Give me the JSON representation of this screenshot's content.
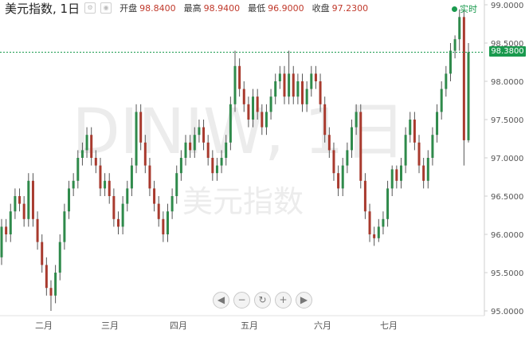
{
  "header": {
    "title": "美元指数, 1日",
    "open_label": "开盘",
    "open_value": "98.8400",
    "high_label": "最高",
    "high_value": "98.9400",
    "low_label": "最低",
    "low_value": "96.9000",
    "close_label": "收盘",
    "close_value": "97.2300",
    "realtime_label": "实时"
  },
  "watermark": {
    "code": "DINIW, 1日",
    "name": "美元指数"
  },
  "current_price": "98.3800",
  "icons": [
    "chart-settings-icon",
    "chart-eye-icon",
    "realtime-dot-icon"
  ],
  "colors": {
    "up": "#2f8a4b",
    "down": "#a83a2e",
    "realtime": "#1a9a4e",
    "price_line": "#1a9a4e"
  },
  "zoom_controls": [
    "scroll-left",
    "zoom-out",
    "reset",
    "zoom-in",
    "scroll-right"
  ],
  "chart_data": {
    "type": "candlestick",
    "ylim": [
      95.0,
      99.0
    ],
    "y_ticks": [
      "99.0000",
      "98.5000",
      "98.0000",
      "97.5000",
      "97.0000",
      "96.5000",
      "96.0000",
      "95.5000",
      "95.0000"
    ],
    "x_labels": [
      "二月",
      "三月",
      "四月",
      "五月",
      "六月",
      "七月"
    ],
    "price_line": 98.38,
    "candles": [
      [
        95.7,
        96.1,
        95.6,
        96.2
      ],
      [
        96.1,
        96.0,
        95.9,
        96.2
      ],
      [
        96.0,
        96.3,
        95.9,
        96.4
      ],
      [
        96.3,
        96.5,
        96.2,
        96.6
      ],
      [
        96.5,
        96.4,
        96.3,
        96.6
      ],
      [
        96.4,
        96.2,
        96.1,
        96.5
      ],
      [
        96.2,
        96.7,
        96.1,
        96.8
      ],
      [
        96.7,
        96.2,
        96.1,
        96.8
      ],
      [
        96.2,
        95.9,
        95.8,
        96.3
      ],
      [
        95.9,
        95.6,
        95.5,
        96.0
      ],
      [
        95.6,
        95.3,
        95.2,
        95.7
      ],
      [
        95.3,
        95.2,
        95.0,
        95.4
      ],
      [
        95.2,
        95.5,
        95.1,
        95.6
      ],
      [
        95.5,
        95.9,
        95.4,
        96.0
      ],
      [
        95.9,
        96.3,
        95.8,
        96.4
      ],
      [
        96.3,
        96.6,
        96.2,
        96.7
      ],
      [
        96.6,
        96.7,
        96.5,
        96.8
      ],
      [
        96.7,
        97.0,
        96.6,
        97.1
      ],
      [
        97.0,
        97.1,
        96.9,
        97.2
      ],
      [
        97.1,
        97.3,
        97.0,
        97.4
      ],
      [
        97.3,
        97.0,
        96.9,
        97.4
      ],
      [
        97.0,
        96.9,
        96.8,
        97.1
      ],
      [
        96.9,
        96.6,
        96.5,
        97.0
      ],
      [
        96.6,
        96.7,
        96.5,
        96.8
      ],
      [
        96.7,
        96.5,
        96.4,
        96.8
      ],
      [
        96.5,
        96.2,
        96.1,
        96.6
      ],
      [
        96.2,
        96.1,
        96.0,
        96.3
      ],
      [
        96.1,
        96.4,
        96.0,
        96.5
      ],
      [
        96.4,
        96.6,
        96.3,
        96.7
      ],
      [
        96.6,
        96.9,
        96.5,
        97.0
      ],
      [
        96.9,
        97.6,
        96.8,
        97.7
      ],
      [
        97.6,
        97.2,
        97.1,
        97.7
      ],
      [
        97.2,
        96.9,
        96.8,
        97.3
      ],
      [
        96.9,
        96.6,
        96.5,
        97.0
      ],
      [
        96.6,
        96.4,
        96.3,
        96.7
      ],
      [
        96.4,
        96.2,
        96.1,
        96.5
      ],
      [
        96.2,
        96.0,
        95.9,
        96.3
      ],
      [
        96.0,
        96.3,
        95.9,
        96.4
      ],
      [
        96.3,
        96.5,
        96.2,
        96.6
      ],
      [
        96.5,
        96.8,
        96.4,
        96.9
      ],
      [
        96.8,
        97.0,
        96.7,
        97.1
      ],
      [
        97.0,
        97.2,
        96.9,
        97.3
      ],
      [
        97.2,
        97.1,
        97.0,
        97.3
      ],
      [
        97.1,
        97.3,
        97.0,
        97.4
      ],
      [
        97.3,
        97.4,
        97.2,
        97.5
      ],
      [
        97.4,
        97.2,
        97.1,
        97.5
      ],
      [
        97.2,
        97.0,
        96.9,
        97.3
      ],
      [
        97.0,
        96.8,
        96.7,
        97.1
      ],
      [
        96.8,
        96.9,
        96.7,
        97.0
      ],
      [
        96.9,
        97.0,
        96.8,
        97.1
      ],
      [
        97.0,
        97.2,
        96.9,
        97.3
      ],
      [
        97.2,
        97.7,
        97.1,
        97.8
      ],
      [
        97.7,
        98.2,
        97.6,
        98.4
      ],
      [
        98.2,
        97.9,
        97.8,
        98.3
      ],
      [
        97.9,
        97.7,
        97.6,
        98.0
      ],
      [
        97.7,
        97.5,
        97.4,
        97.8
      ],
      [
        97.5,
        97.8,
        97.4,
        97.9
      ],
      [
        97.8,
        97.6,
        97.5,
        97.9
      ],
      [
        97.6,
        97.4,
        97.3,
        97.7
      ],
      [
        97.4,
        97.6,
        97.3,
        97.7
      ],
      [
        97.6,
        97.8,
        97.5,
        97.9
      ],
      [
        97.8,
        98.0,
        97.7,
        98.1
      ],
      [
        98.0,
        98.1,
        97.9,
        98.2
      ],
      [
        98.1,
        97.8,
        97.7,
        98.2
      ],
      [
        97.8,
        98.1,
        97.7,
        98.4
      ],
      [
        98.1,
        97.8,
        97.7,
        98.2
      ],
      [
        97.8,
        98.0,
        97.7,
        98.1
      ],
      [
        98.0,
        97.7,
        97.6,
        98.1
      ],
      [
        97.7,
        97.9,
        97.6,
        98.0
      ],
      [
        97.9,
        98.1,
        97.8,
        98.2
      ],
      [
        98.1,
        98.0,
        97.9,
        98.2
      ],
      [
        98.0,
        97.7,
        97.6,
        98.1
      ],
      [
        97.7,
        97.3,
        97.2,
        97.8
      ],
      [
        97.3,
        97.1,
        97.0,
        97.4
      ],
      [
        97.1,
        96.8,
        96.7,
        97.2
      ],
      [
        96.8,
        96.6,
        96.5,
        96.9
      ],
      [
        96.6,
        96.9,
        96.5,
        97.0
      ],
      [
        96.9,
        97.1,
        96.8,
        97.2
      ],
      [
        97.1,
        97.4,
        97.0,
        97.5
      ],
      [
        97.4,
        97.6,
        97.3,
        97.7
      ],
      [
        97.6,
        96.7,
        96.6,
        97.7
      ],
      [
        96.7,
        96.3,
        96.2,
        96.8
      ],
      [
        96.3,
        96.0,
        95.9,
        96.4
      ],
      [
        96.0,
        95.95,
        95.85,
        96.1
      ],
      [
        95.95,
        96.1,
        95.9,
        96.2
      ],
      [
        96.1,
        96.2,
        96.0,
        96.3
      ],
      [
        96.2,
        96.6,
        96.1,
        96.7
      ],
      [
        96.6,
        96.85,
        96.5,
        96.9
      ],
      [
        96.85,
        96.7,
        96.6,
        96.9
      ],
      [
        96.7,
        96.9,
        96.6,
        97.0
      ],
      [
        96.9,
        97.3,
        96.8,
        97.4
      ],
      [
        97.3,
        97.5,
        97.2,
        97.6
      ],
      [
        97.5,
        97.2,
        97.1,
        97.6
      ],
      [
        97.2,
        96.9,
        96.8,
        97.3
      ],
      [
        96.9,
        96.7,
        96.6,
        97.0
      ],
      [
        96.7,
        97.0,
        96.6,
        97.1
      ],
      [
        97.0,
        97.3,
        96.9,
        97.4
      ],
      [
        97.3,
        97.6,
        97.2,
        97.7
      ],
      [
        97.6,
        97.9,
        97.5,
        98.0
      ],
      [
        97.9,
        98.1,
        97.8,
        98.2
      ],
      [
        98.1,
        98.4,
        98.0,
        98.5
      ],
      [
        98.4,
        98.55,
        98.3,
        98.6
      ],
      [
        98.55,
        98.84,
        98.4,
        98.94
      ],
      [
        98.84,
        97.23,
        96.9,
        98.94
      ],
      [
        97.23,
        98.38,
        97.2,
        98.5
      ]
    ]
  }
}
